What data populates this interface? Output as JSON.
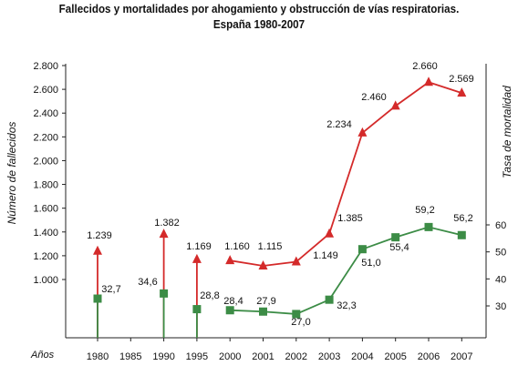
{
  "chart_data": {
    "type": "line",
    "title": "Fallecidos y mortalidades por ahogamiento y obstrucción de vías respiratorias.",
    "subtitle": "España 1980-2007",
    "x_axis_label": "Años",
    "y_left_label": "Número de fallecidos",
    "y_right_label": "Tasa de mortalidad",
    "y_left_ticks": [
      "2.800",
      "2.600",
      "2.400",
      "2.200",
      "2.000",
      "1.800",
      "1.600",
      "1.400",
      "1.200",
      "1.000"
    ],
    "y_left_tick_values": [
      2800,
      2600,
      2400,
      2200,
      2000,
      1800,
      1600,
      1400,
      1200,
      1000
    ],
    "y_right_ticks": [
      "60",
      "50",
      "40",
      "30"
    ],
    "y_right_tick_values": [
      60,
      50,
      40,
      30
    ],
    "x_categories": [
      "1980",
      "1985",
      "1990",
      "1995",
      "2000",
      "2001",
      "2002",
      "2003",
      "2004",
      "2005",
      "2006",
      "2007"
    ],
    "x_tick_positions": [
      0,
      1,
      2,
      3,
      4,
      5,
      6,
      7,
      8,
      9,
      10,
      11
    ],
    "x_tick_labels": [
      "1980",
      "1985",
      "1990",
      "1995",
      "2000",
      "2001",
      "2002",
      "2003",
      "2004",
      "2005",
      "2006",
      "2007"
    ],
    "ylim_left": [
      1000,
      2800
    ],
    "ylim_right": [
      30,
      60
    ],
    "series": [
      {
        "axis": "left",
        "color": "#d42a2a",
        "marker": "triangle",
        "x": [
          0,
          2,
          3,
          4,
          5,
          6,
          7,
          8,
          9,
          10,
          11
        ],
        "values": [
          1239,
          1382,
          1169,
          1160,
          1115,
          1149,
          1385,
          2234,
          2460,
          2660,
          2569
        ],
        "labels": [
          "1.239",
          "1.382",
          "1.169",
          "1.160",
          "1.115",
          "1.149",
          "1.385",
          "2.234",
          "2.460",
          "2.660",
          "2.569"
        ],
        "connected_from_index": 3
      },
      {
        "axis": "right",
        "color": "#3c8c46",
        "marker": "square",
        "x": [
          0,
          2,
          3,
          4,
          5,
          6,
          7,
          8,
          9,
          10,
          11
        ],
        "values": [
          32.7,
          34.6,
          28.8,
          28.4,
          27.9,
          27.0,
          32.3,
          51.0,
          55.4,
          59.2,
          56.2
        ],
        "labels": [
          "32,7",
          "34,6",
          "28,8",
          "28,4",
          "27,9",
          "27,0",
          "32,3",
          "51,0",
          "55,4",
          "59,2",
          "56,2"
        ],
        "connected_from_index": 3
      }
    ]
  }
}
